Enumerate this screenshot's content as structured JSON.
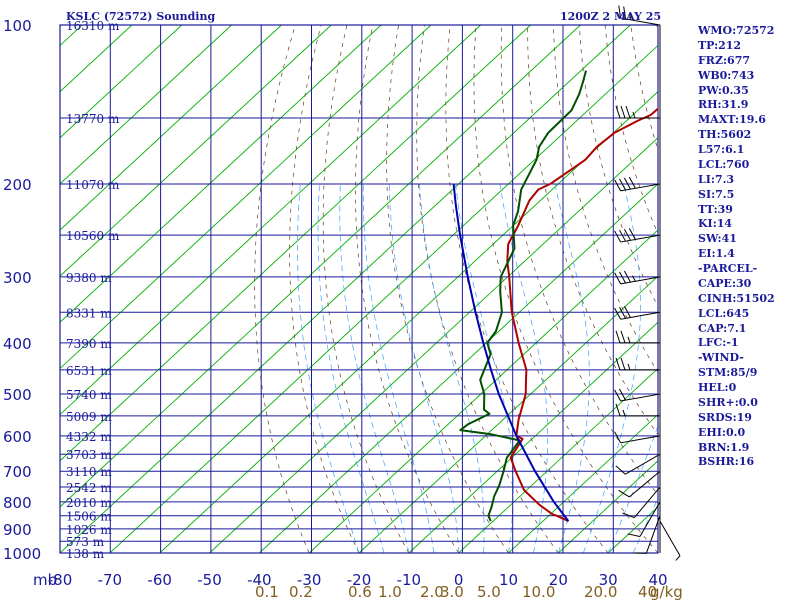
{
  "title_left": "KSLC (72572) Sounding",
  "title_right": "1200Z  2 MAY 25",
  "stats": [
    "WMO:72572",
    "TP:212",
    "FRZ:677",
    "WB0:743",
    "PW:0.35",
    "RH:31.9",
    "MAXT:19.6",
    "TH:5602",
    "L57:6.1",
    "LCL:760",
    "LI:7.3",
    "SI:7.5",
    "TT:39",
    "KI:14",
    "SW:41",
    "EI:1.4",
    "-PARCEL-",
    "CAPE:30",
    "CINH:51502",
    "LCL:645",
    "CAP:7.1",
    "LFC:-1",
    "-WIND-",
    "STM:85/9",
    "HEL:0",
    "SHR+:0.0",
    "SRDS:19",
    "EHI:0.0",
    "BRN:1.9",
    "BSHR:16"
  ],
  "colors": {
    "grid": "#1a1a9a",
    "isotherm": "#00b000",
    "dry_adiabat": "#604020",
    "moist_adiabat": "#40a0ff",
    "temperature": "#b00000",
    "dewpoint": "#005000",
    "parcel": "#0000b0",
    "wind": "#000000",
    "label": "#1a1a9a",
    "mixing_label": "#806020"
  },
  "chart_data": {
    "type": "line",
    "subtype": "skew-T log-p sounding diagram",
    "x_unit_label": "mb",
    "mixing_ratio_unit": "g/kg",
    "xlim": [
      -80,
      40
    ],
    "ylim": [
      1000,
      100
    ],
    "y_scale": "log",
    "pressure_ticks": [
      100,
      200,
      300,
      400,
      500,
      600,
      700,
      800,
      900,
      1000
    ],
    "temperature_ticks": [
      -80,
      -70,
      -60,
      -50,
      -40,
      -30,
      -20,
      -10,
      0,
      10,
      20,
      30,
      40
    ],
    "mixing_ratio_ticks": [
      "0.1",
      "0.2",
      "0.6",
      "1.0",
      "2.0",
      "3.0",
      "5.0",
      "10.0",
      "20.0",
      "40"
    ],
    "height_labels": [
      {
        "p": 100,
        "label": "16310 m"
      },
      {
        "p": 150,
        "label": "13770 m"
      },
      {
        "p": 200,
        "label": "11070 m"
      },
      {
        "p": 250,
        "label": "10560 m"
      },
      {
        "p": 300,
        "label": "9380 m"
      },
      {
        "p": 350,
        "label": "8331 m"
      },
      {
        "p": 400,
        "label": "7390 m"
      },
      {
        "p": 450,
        "label": "6531 m"
      },
      {
        "p": 500,
        "label": "5740 m"
      },
      {
        "p": 550,
        "label": "5009 m"
      },
      {
        "p": 600,
        "label": "4332 m"
      },
      {
        "p": 650,
        "label": "3703 m"
      },
      {
        "p": 700,
        "label": "3110 m"
      },
      {
        "p": 750,
        "label": "2542 m"
      },
      {
        "p": 800,
        "label": "2010 m"
      },
      {
        "p": 850,
        "label": "1506 m"
      },
      {
        "p": 900,
        "label": "1026 m"
      },
      {
        "p": 950,
        "label": "573 m"
      },
      {
        "p": 1000,
        "label": "138 m"
      }
    ],
    "series": [
      {
        "key": "temperature",
        "points": [
          [
            870,
            15.1
          ],
          [
            850,
            11.6
          ],
          [
            845,
            10.5
          ],
          [
            810,
            5.7
          ],
          [
            760,
            -0.5
          ],
          [
            700,
            -6.3
          ],
          [
            660,
            -10.2
          ],
          [
            608,
            -11.9
          ],
          [
            600,
            -13.8
          ],
          [
            560,
            -16.8
          ],
          [
            500,
            -21.0
          ],
          [
            470,
            -24.0
          ],
          [
            450,
            -26.1
          ],
          [
            400,
            -33.5
          ],
          [
            350,
            -41.5
          ],
          [
            300,
            -49.7
          ],
          [
            280,
            -53.5
          ],
          [
            260,
            -57.0
          ],
          [
            240,
            -59.0
          ],
          [
            215,
            -62.2
          ],
          [
            205,
            -62.8
          ],
          [
            200,
            -61.6
          ],
          [
            180,
            -59.8
          ],
          [
            170,
            -60.3
          ],
          [
            160,
            -59.8
          ],
          [
            152,
            -57.8
          ],
          [
            148,
            -56.4
          ],
          [
            140,
            -56.2
          ],
          [
            130,
            -55.8
          ],
          [
            120,
            -56.8
          ],
          [
            110,
            -60.1
          ],
          [
            104,
            -61.0
          ],
          [
            100,
            -61.8
          ]
        ]
      },
      {
        "key": "dewpoint",
        "points": [
          [
            870,
            -0.5
          ],
          [
            850,
            -2.1
          ],
          [
            820,
            -3.3
          ],
          [
            780,
            -5.2
          ],
          [
            745,
            -6.5
          ],
          [
            700,
            -8.7
          ],
          [
            660,
            -11.0
          ],
          [
            645,
            -11.3
          ],
          [
            612,
            -12.2
          ],
          [
            596,
            -19.2
          ],
          [
            585,
            -26.3
          ],
          [
            570,
            -26.0
          ],
          [
            545,
            -24.0
          ],
          [
            535,
            -26.0
          ],
          [
            500,
            -29.3
          ],
          [
            470,
            -33.2
          ],
          [
            420,
            -36.7
          ],
          [
            400,
            -39.8
          ],
          [
            380,
            -40.6
          ],
          [
            350,
            -43.5
          ],
          [
            320,
            -48.3
          ],
          [
            300,
            -51.4
          ],
          [
            265,
            -54.8
          ],
          [
            240,
            -60.0
          ],
          [
            225,
            -62.2
          ],
          [
            205,
            -66.2
          ],
          [
            195,
            -67.5
          ],
          [
            180,
            -69.6
          ],
          [
            170,
            -71.9
          ],
          [
            160,
            -73.1
          ],
          [
            145,
            -73.3
          ],
          [
            135,
            -75.3
          ],
          [
            128,
            -77.2
          ],
          [
            122,
            -79.0
          ]
        ]
      },
      {
        "key": "parcel",
        "points": [
          [
            870,
            15.1
          ],
          [
            800,
            8.0
          ],
          [
            700,
            -2.4
          ],
          [
            600,
            -13.8
          ],
          [
            500,
            -26.4
          ],
          [
            450,
            -33.2
          ],
          [
            400,
            -40.6
          ],
          [
            350,
            -48.8
          ],
          [
            300,
            -58.0
          ],
          [
            250,
            -68.6
          ],
          [
            220,
            -75.8
          ],
          [
            200,
            -81.0
          ]
        ]
      }
    ],
    "wind_barbs": [
      {
        "p": 870,
        "dir": 150,
        "spd": 5
      },
      {
        "p": 850,
        "dir": 200,
        "spd": 10
      },
      {
        "p": 800,
        "dir": 210,
        "spd": 10
      },
      {
        "p": 750,
        "dir": 220,
        "spd": 10
      },
      {
        "p": 700,
        "dir": 230,
        "spd": 10
      },
      {
        "p": 650,
        "dir": 240,
        "spd": 10
      },
      {
        "p": 600,
        "dir": 260,
        "spd": 10
      },
      {
        "p": 550,
        "dir": 270,
        "spd": 15
      },
      {
        "p": 500,
        "dir": 260,
        "spd": 20
      },
      {
        "p": 450,
        "dir": 270,
        "spd": 25
      },
      {
        "p": 400,
        "dir": 270,
        "spd": 25
      },
      {
        "p": 350,
        "dir": 260,
        "spd": 30
      },
      {
        "p": 300,
        "dir": 260,
        "spd": 35
      },
      {
        "p": 250,
        "dir": 260,
        "spd": 40
      },
      {
        "p": 200,
        "dir": 260,
        "spd": 40
      },
      {
        "p": 150,
        "dir": 270,
        "spd": 35
      },
      {
        "p": 100,
        "dir": 280,
        "spd": 25
      }
    ]
  }
}
